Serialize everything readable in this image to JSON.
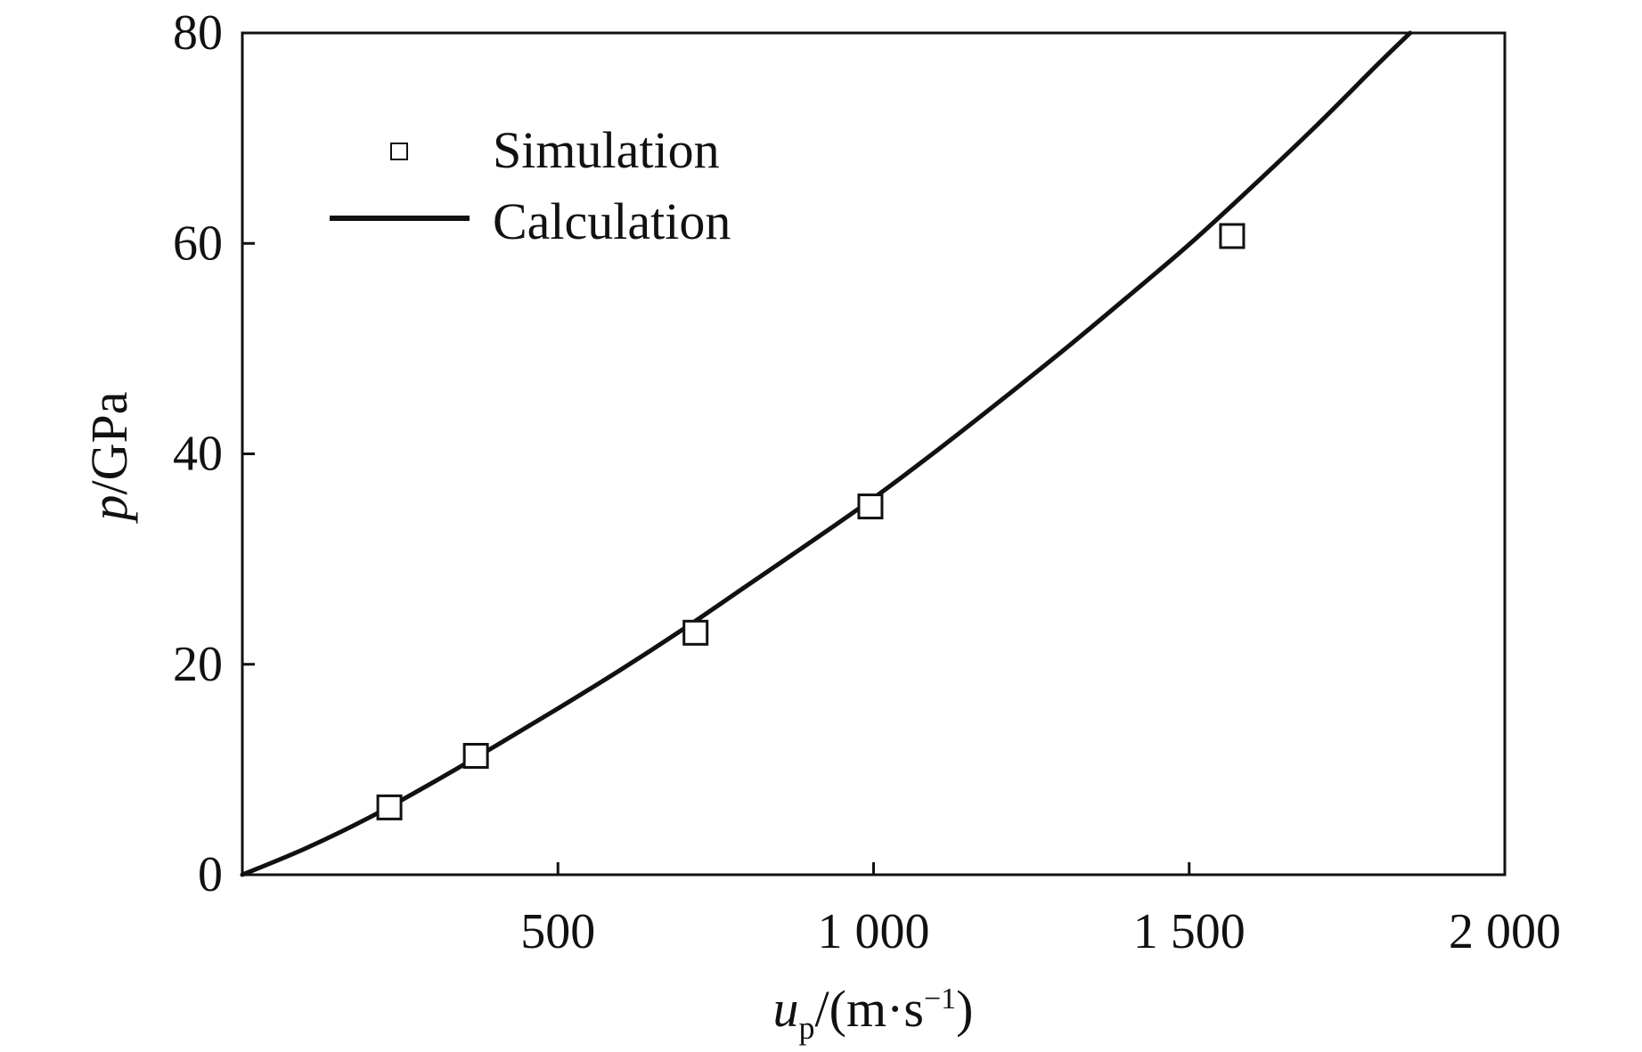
{
  "chart_data": {
    "type": "line",
    "x_axis": {
      "label_var": "u",
      "label_sub": "p",
      "label_units": "/(m·s",
      "label_exp": "−1",
      "label_close": ")",
      "range": [
        0,
        2000
      ],
      "ticks": [
        {
          "value": 500,
          "label": "500"
        },
        {
          "value": 1000,
          "label": "1 000"
        },
        {
          "value": 1500,
          "label": "1 500"
        },
        {
          "value": 2000,
          "label": "2 000"
        }
      ]
    },
    "y_axis": {
      "label_var": "p",
      "label_units": "/GPa",
      "range": [
        0,
        80
      ],
      "ticks": [
        {
          "value": 0,
          "label": "0"
        },
        {
          "value": 20,
          "label": "20"
        },
        {
          "value": 40,
          "label": "40"
        },
        {
          "value": 60,
          "label": "60"
        },
        {
          "value": 80,
          "label": "80"
        }
      ]
    },
    "grid": false,
    "legend": {
      "placement": "top-left",
      "entries": [
        {
          "label": "Simulation",
          "marker": "open-square"
        },
        {
          "label": "Calculation",
          "marker": "solid-line"
        }
      ]
    },
    "series": [
      {
        "name": "Simulation",
        "kind": "scatter",
        "marker": "open-square",
        "points": [
          {
            "x": 233,
            "y": 6.4
          },
          {
            "x": 370,
            "y": 11.3
          },
          {
            "x": 718,
            "y": 23.0
          },
          {
            "x": 995,
            "y": 35.0
          },
          {
            "x": 1568,
            "y": 60.7
          }
        ]
      },
      {
        "name": "Calculation",
        "kind": "line",
        "points": [
          {
            "x": 0,
            "y": 0
          },
          {
            "x": 100,
            "y": 2.5
          },
          {
            "x": 200,
            "y": 5.4
          },
          {
            "x": 300,
            "y": 8.7
          },
          {
            "x": 400,
            "y": 12.2
          },
          {
            "x": 500,
            "y": 15.8
          },
          {
            "x": 600,
            "y": 19.5
          },
          {
            "x": 700,
            "y": 23.4
          },
          {
            "x": 800,
            "y": 27.5
          },
          {
            "x": 900,
            "y": 31.6
          },
          {
            "x": 1000,
            "y": 35.8
          },
          {
            "x": 1100,
            "y": 40.3
          },
          {
            "x": 1200,
            "y": 45.0
          },
          {
            "x": 1300,
            "y": 49.8
          },
          {
            "x": 1400,
            "y": 54.8
          },
          {
            "x": 1500,
            "y": 59.9
          },
          {
            "x": 1600,
            "y": 65.4
          },
          {
            "x": 1700,
            "y": 71.1
          },
          {
            "x": 1800,
            "y": 77.1
          },
          {
            "x": 1850,
            "y": 80.0
          }
        ]
      }
    ],
    "colors": {
      "ink": "#111111",
      "marker_fill": "#ffffff"
    }
  }
}
